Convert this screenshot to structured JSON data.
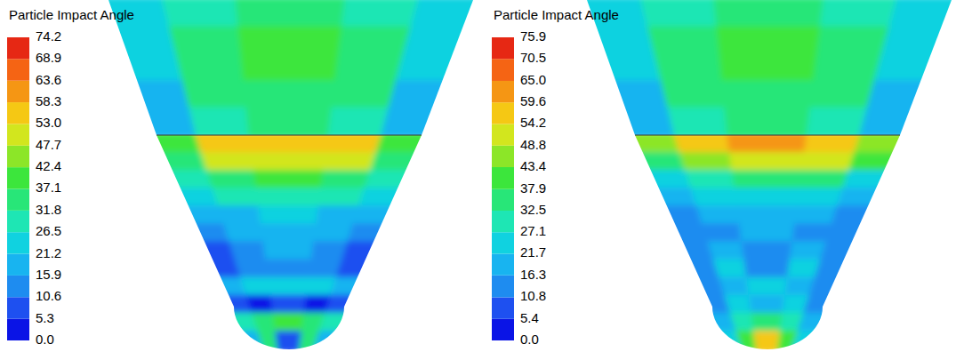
{
  "chart_data": [
    {
      "type": "contour",
      "title": "Particle Impact Angle",
      "colorbar": {
        "range": [
          0,
          74.2
        ],
        "ticks": [
          {
            "value": 0,
            "label": "0.0"
          },
          5.3,
          10.6,
          15.9,
          21.2,
          26.5,
          31.8,
          37.1,
          42.4,
          47.7,
          {
            "value": 53.0,
            "label": "53.0"
          },
          58.3,
          63.6,
          68.9,
          74.2
        ],
        "colors": [
          "#0a14e6",
          "#1e50f0",
          "#1e8cf0",
          "#18b4f0",
          "#10d2e0",
          "#1ee6b4",
          "#28e678",
          "#3ce63c",
          "#8ce628",
          "#d2e61e",
          "#f5c814",
          "#f59614",
          "#f56414",
          "#e62814"
        ]
      },
      "upper_cells": [
        [
          22,
          30,
          34,
          30,
          22
        ],
        [
          24,
          34,
          38,
          34,
          24
        ],
        [
          22,
          35,
          40,
          36,
          22
        ],
        [
          20,
          33,
          36,
          33,
          20
        ],
        [
          18,
          30,
          33,
          30,
          18
        ]
      ],
      "cone_cells": [
        [
          40,
          55,
          58,
          57,
          42
        ],
        [
          35,
          48,
          52,
          50,
          36
        ],
        [
          28,
          35,
          38,
          36,
          28
        ],
        [
          22,
          28,
          30,
          28,
          22
        ],
        [
          16,
          20,
          22,
          20,
          16
        ],
        [
          12,
          16,
          18,
          16,
          12
        ],
        [
          10,
          14,
          16,
          14,
          10
        ],
        [
          10,
          13,
          15,
          13,
          10
        ],
        [
          18,
          24,
          26,
          24,
          18
        ],
        [
          8,
          5,
          6,
          5,
          8
        ],
        [
          30,
          36,
          38,
          36,
          30
        ],
        [
          20,
          35,
          8,
          35,
          20
        ]
      ]
    },
    {
      "type": "contour",
      "title": "Particle Impact Angle",
      "colorbar": {
        "range": [
          0,
          75.9
        ],
        "ticks": [
          {
            "value": 0,
            "label": "0.0"
          },
          5.4,
          10.8,
          16.3,
          21.7,
          27.1,
          32.5,
          37.9,
          43.4,
          48.8,
          54.2,
          59.6,
          {
            "value": 65.0,
            "label": "65.0"
          },
          70.5,
          75.9
        ],
        "colors": [
          "#0a14e6",
          "#1e50f0",
          "#1e8cf0",
          "#18b4f0",
          "#10d2e0",
          "#1ee6b4",
          "#28e678",
          "#3ce63c",
          "#8ce628",
          "#d2e61e",
          "#f5c814",
          "#f59614",
          "#f56414",
          "#e62814"
        ]
      },
      "upper_cells": [
        [
          22,
          30,
          35,
          30,
          22
        ],
        [
          24,
          35,
          39,
          35,
          24
        ],
        [
          22,
          36,
          40,
          36,
          22
        ],
        [
          20,
          33,
          37,
          33,
          20
        ],
        [
          18,
          30,
          33,
          30,
          18
        ]
      ],
      "cone_cells": [
        [
          45,
          57,
          60,
          58,
          45
        ],
        [
          36,
          48,
          52,
          50,
          38
        ],
        [
          25,
          32,
          35,
          33,
          25
        ],
        [
          18,
          24,
          26,
          24,
          18
        ],
        [
          14,
          18,
          20,
          18,
          14
        ],
        [
          12,
          16,
          18,
          16,
          12
        ],
        [
          12,
          18,
          14,
          20,
          12
        ],
        [
          14,
          22,
          16,
          24,
          14
        ],
        [
          12,
          20,
          26,
          18,
          12
        ],
        [
          14,
          24,
          18,
          26,
          14
        ],
        [
          20,
          30,
          34,
          30,
          20
        ],
        [
          25,
          40,
          55,
          40,
          25
        ]
      ]
    }
  ]
}
